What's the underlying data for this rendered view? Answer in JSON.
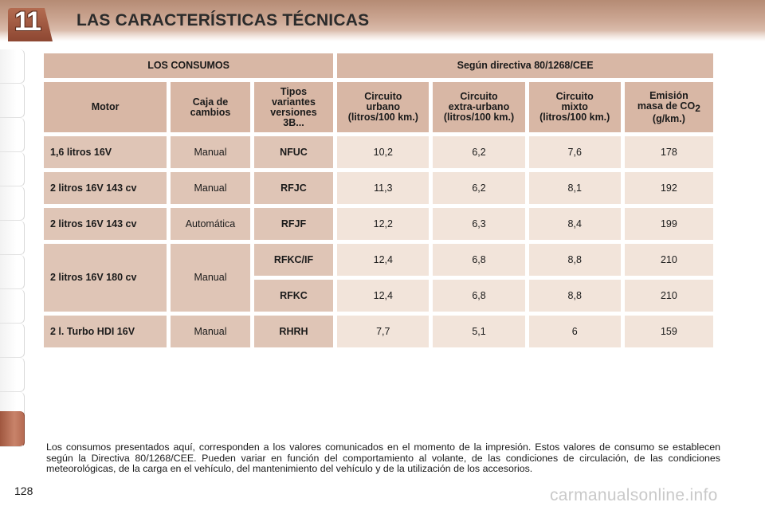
{
  "header": {
    "chapter_number": "11",
    "title": "LAS CARACTERÍSTICAS TÉCNICAS"
  },
  "table": {
    "group_left": "LOS CONSUMOS",
    "group_right": "Según directiva 80/1268/CEE",
    "columns": {
      "motor": "Motor",
      "gearbox_line1": "Caja de",
      "gearbox_line2": "cambios",
      "types_line1": "Tipos",
      "types_line2": "variantes",
      "types_line3": "versiones",
      "types_line4": "3B...",
      "urban_line1": "Circuito",
      "urban_line2": "urbano",
      "urban_line3": "(litros/100 km.)",
      "extra_line1": "Circuito",
      "extra_line2": "extra-urbano",
      "extra_line3": "(litros/100 km.)",
      "mixed_line1": "Circuito",
      "mixed_line2": "mixto",
      "mixed_line3": "(litros/100 km.)",
      "emission_line1": "Emisión",
      "emission_line2": "masa de CO",
      "emission_sub": "2",
      "emission_line3": "(g/km.)"
    },
    "rows": [
      {
        "motor": "1,6 litros 16V",
        "gearbox": "Manual",
        "type": "NFUC",
        "urban": "10,2",
        "extra": "6,2",
        "mixed": "7,6",
        "co2": "178"
      },
      {
        "motor": "2 litros 16V 143 cv",
        "gearbox": "Manual",
        "type": "RFJC",
        "urban": "11,3",
        "extra": "6,2",
        "mixed": "8,1",
        "co2": "192"
      },
      {
        "motor": "2 litros 16V 143 cv",
        "gearbox": "Automática",
        "type": "RFJF",
        "urban": "12,2",
        "extra": "6,3",
        "mixed": "8,4",
        "co2": "199"
      },
      {
        "motor": "2 litros 16V 180 cv",
        "gearbox": "Manual",
        "type": "RFKC/IF",
        "urban": "12,4",
        "extra": "6,8",
        "mixed": "8,8",
        "co2": "210"
      },
      {
        "type": "RFKC",
        "urban": "12,4",
        "extra": "6,8",
        "mixed": "8,8",
        "co2": "210"
      },
      {
        "motor": "2 l. Turbo HDI 16V",
        "gearbox": "Manual",
        "type": "RHRH",
        "urban": "7,7",
        "extra": "5,1",
        "mixed": "6",
        "co2": "159"
      }
    ]
  },
  "note": "Los consumos presentados aquí, corresponden a los valores comunicados en el momento de la impresión. Estos valores de consumo se establecen según la Directiva 80/1268/CEE. Pueden variar en función del comportamiento al volante, de las condiciones de circulación, de las condiciones meteorológicas, de la carga en el vehículo, del mantenimiento del vehículo y de la utilización de los accesorios.",
  "page_number": "128",
  "watermark": "carmanualsonline.info",
  "colors": {
    "header_band": "#cba591",
    "chapter_badge": "#a0573f",
    "table_header": "#d8b7a5",
    "table_key_cell": "#dfc5b6",
    "table_value_cell": "#f2e4da"
  }
}
